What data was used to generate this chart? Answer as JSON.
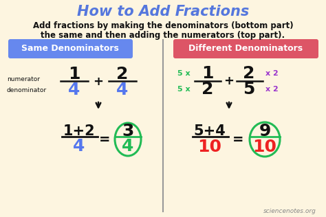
{
  "bg_color": "#fdf5e0",
  "title": "How to Add Fractions",
  "title_color": "#5577dd",
  "subtitle_line1": "Add fractions by making the denominators (bottom part)",
  "subtitle_line2": "the same and then adding the numerators (top part).",
  "subtitle_color": "#111111",
  "box_left_text": "Same Denominators",
  "box_left_color": "#6688ee",
  "box_right_text": "Different Denominators",
  "box_right_color": "#dd5566",
  "box_text_color": "#ffffff",
  "divider_color": "#999999",
  "green_color": "#22bb55",
  "blue_color": "#5577ee",
  "red_color": "#ee2222",
  "purple_color": "#9933cc",
  "black_color": "#111111",
  "watermark": "sciencenotes.org",
  "watermark_color": "#888888"
}
